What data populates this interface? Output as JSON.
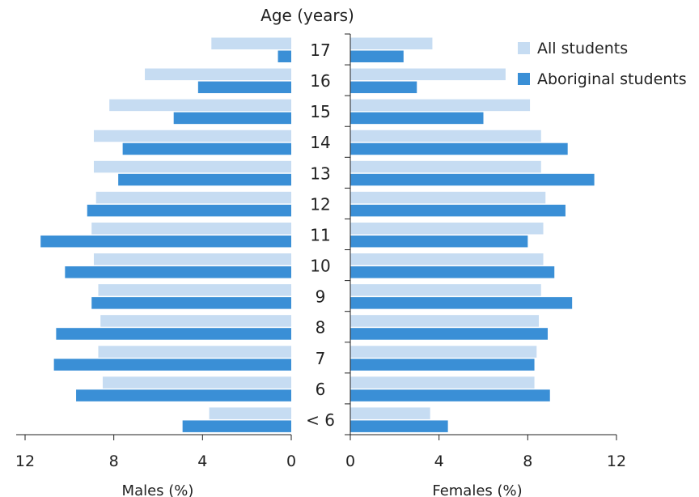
{
  "chart_data": {
    "type": "bar",
    "orientation": "horizontal-population-pyramid",
    "title": "Age (years)",
    "categories": [
      "17",
      "16",
      "15",
      "14",
      "13",
      "12",
      "11",
      "10",
      "9",
      "8",
      "7",
      "6",
      "< 6"
    ],
    "left_panel": {
      "xlabel": "Males (%)",
      "xlim": [
        12,
        0
      ],
      "ticks": [
        "12",
        "8",
        "4",
        "0"
      ],
      "series": [
        {
          "name": "All students",
          "color": "#c6dcf2",
          "values": [
            3.6,
            6.6,
            8.2,
            8.9,
            8.9,
            8.8,
            9.0,
            8.9,
            8.7,
            8.6,
            8.7,
            8.5,
            3.7
          ]
        },
        {
          "name": "Aboriginal students",
          "color": "#3a8fd6",
          "values": [
            0.6,
            4.2,
            5.3,
            7.6,
            7.8,
            9.2,
            11.3,
            10.2,
            9.0,
            10.6,
            10.7,
            9.7,
            4.9
          ]
        }
      ]
    },
    "right_panel": {
      "xlabel": "Females (%)",
      "xlim": [
        0,
        12
      ],
      "ticks": [
        "0",
        "4",
        "8",
        "12"
      ],
      "series": [
        {
          "name": "All students",
          "color": "#c6dcf2",
          "values": [
            3.7,
            7.0,
            8.1,
            8.6,
            8.6,
            8.8,
            8.7,
            8.7,
            8.6,
            8.5,
            8.4,
            8.3,
            3.6
          ]
        },
        {
          "name": "Aboriginal students",
          "color": "#3a8fd6",
          "values": [
            2.4,
            3.0,
            6.0,
            9.8,
            11.0,
            9.7,
            8.0,
            9.2,
            10.0,
            8.9,
            8.3,
            9.0,
            4.4
          ]
        }
      ]
    },
    "legend": {
      "position": "top-right",
      "items": [
        {
          "label": "All students",
          "color": "#c6dcf2"
        },
        {
          "label": "Aboriginal students",
          "color": "#3a8fd6"
        }
      ]
    },
    "grid": false
  }
}
